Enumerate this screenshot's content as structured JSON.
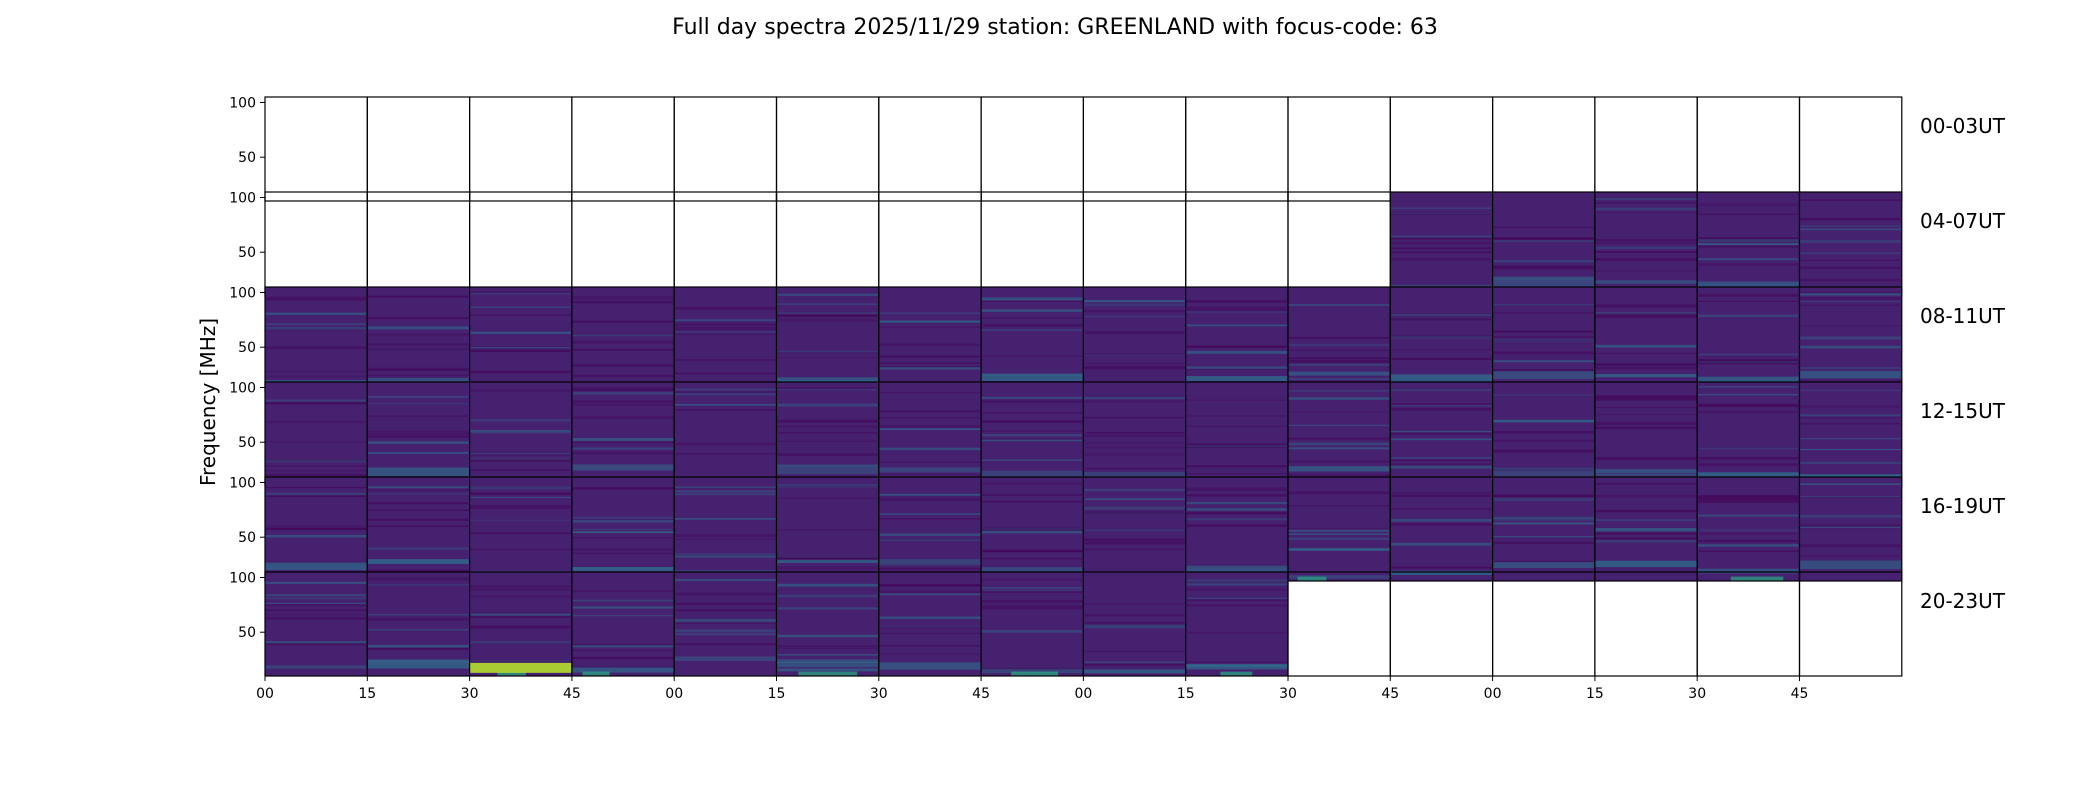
{
  "chart_data": {
    "type": "heatmap",
    "title": "Full day spectra 2025/11/29 station: GREENLAND with focus-code: 63",
    "ylabel": "Frequency [MHz]",
    "xlabel": "",
    "ylim": [
      10,
      105
    ],
    "y_ticks": [
      "100",
      "50"
    ],
    "y_tick_values": [
      100,
      50
    ],
    "x_ticks": [
      "00",
      "15",
      "30",
      "45",
      "00",
      "15",
      "30",
      "45",
      "00",
      "15",
      "30",
      "45",
      "00",
      "15",
      "30",
      "45"
    ],
    "panels_per_row": 16,
    "panel_minutes": 15,
    "rows": [
      {
        "label": "00-03UT",
        "status": "0000000000000000"
      },
      {
        "label": "04-07UT",
        "status": "0000000000011111"
      },
      {
        "label": "08-11UT",
        "status": "1111111111111111"
      },
      {
        "label": "12-15UT",
        "status": "1111111111111111"
      },
      {
        "label": "16-19UT",
        "status": "1111111111111111"
      },
      {
        "label": "20-23UT",
        "status": "1111111111000000"
      }
    ],
    "colormap": "viridis",
    "colors": {
      "low": "#440154",
      "base": "#46216f",
      "mid": "#2c728e",
      "high": "#27ad81",
      "peak": "#b5de2b"
    }
  }
}
